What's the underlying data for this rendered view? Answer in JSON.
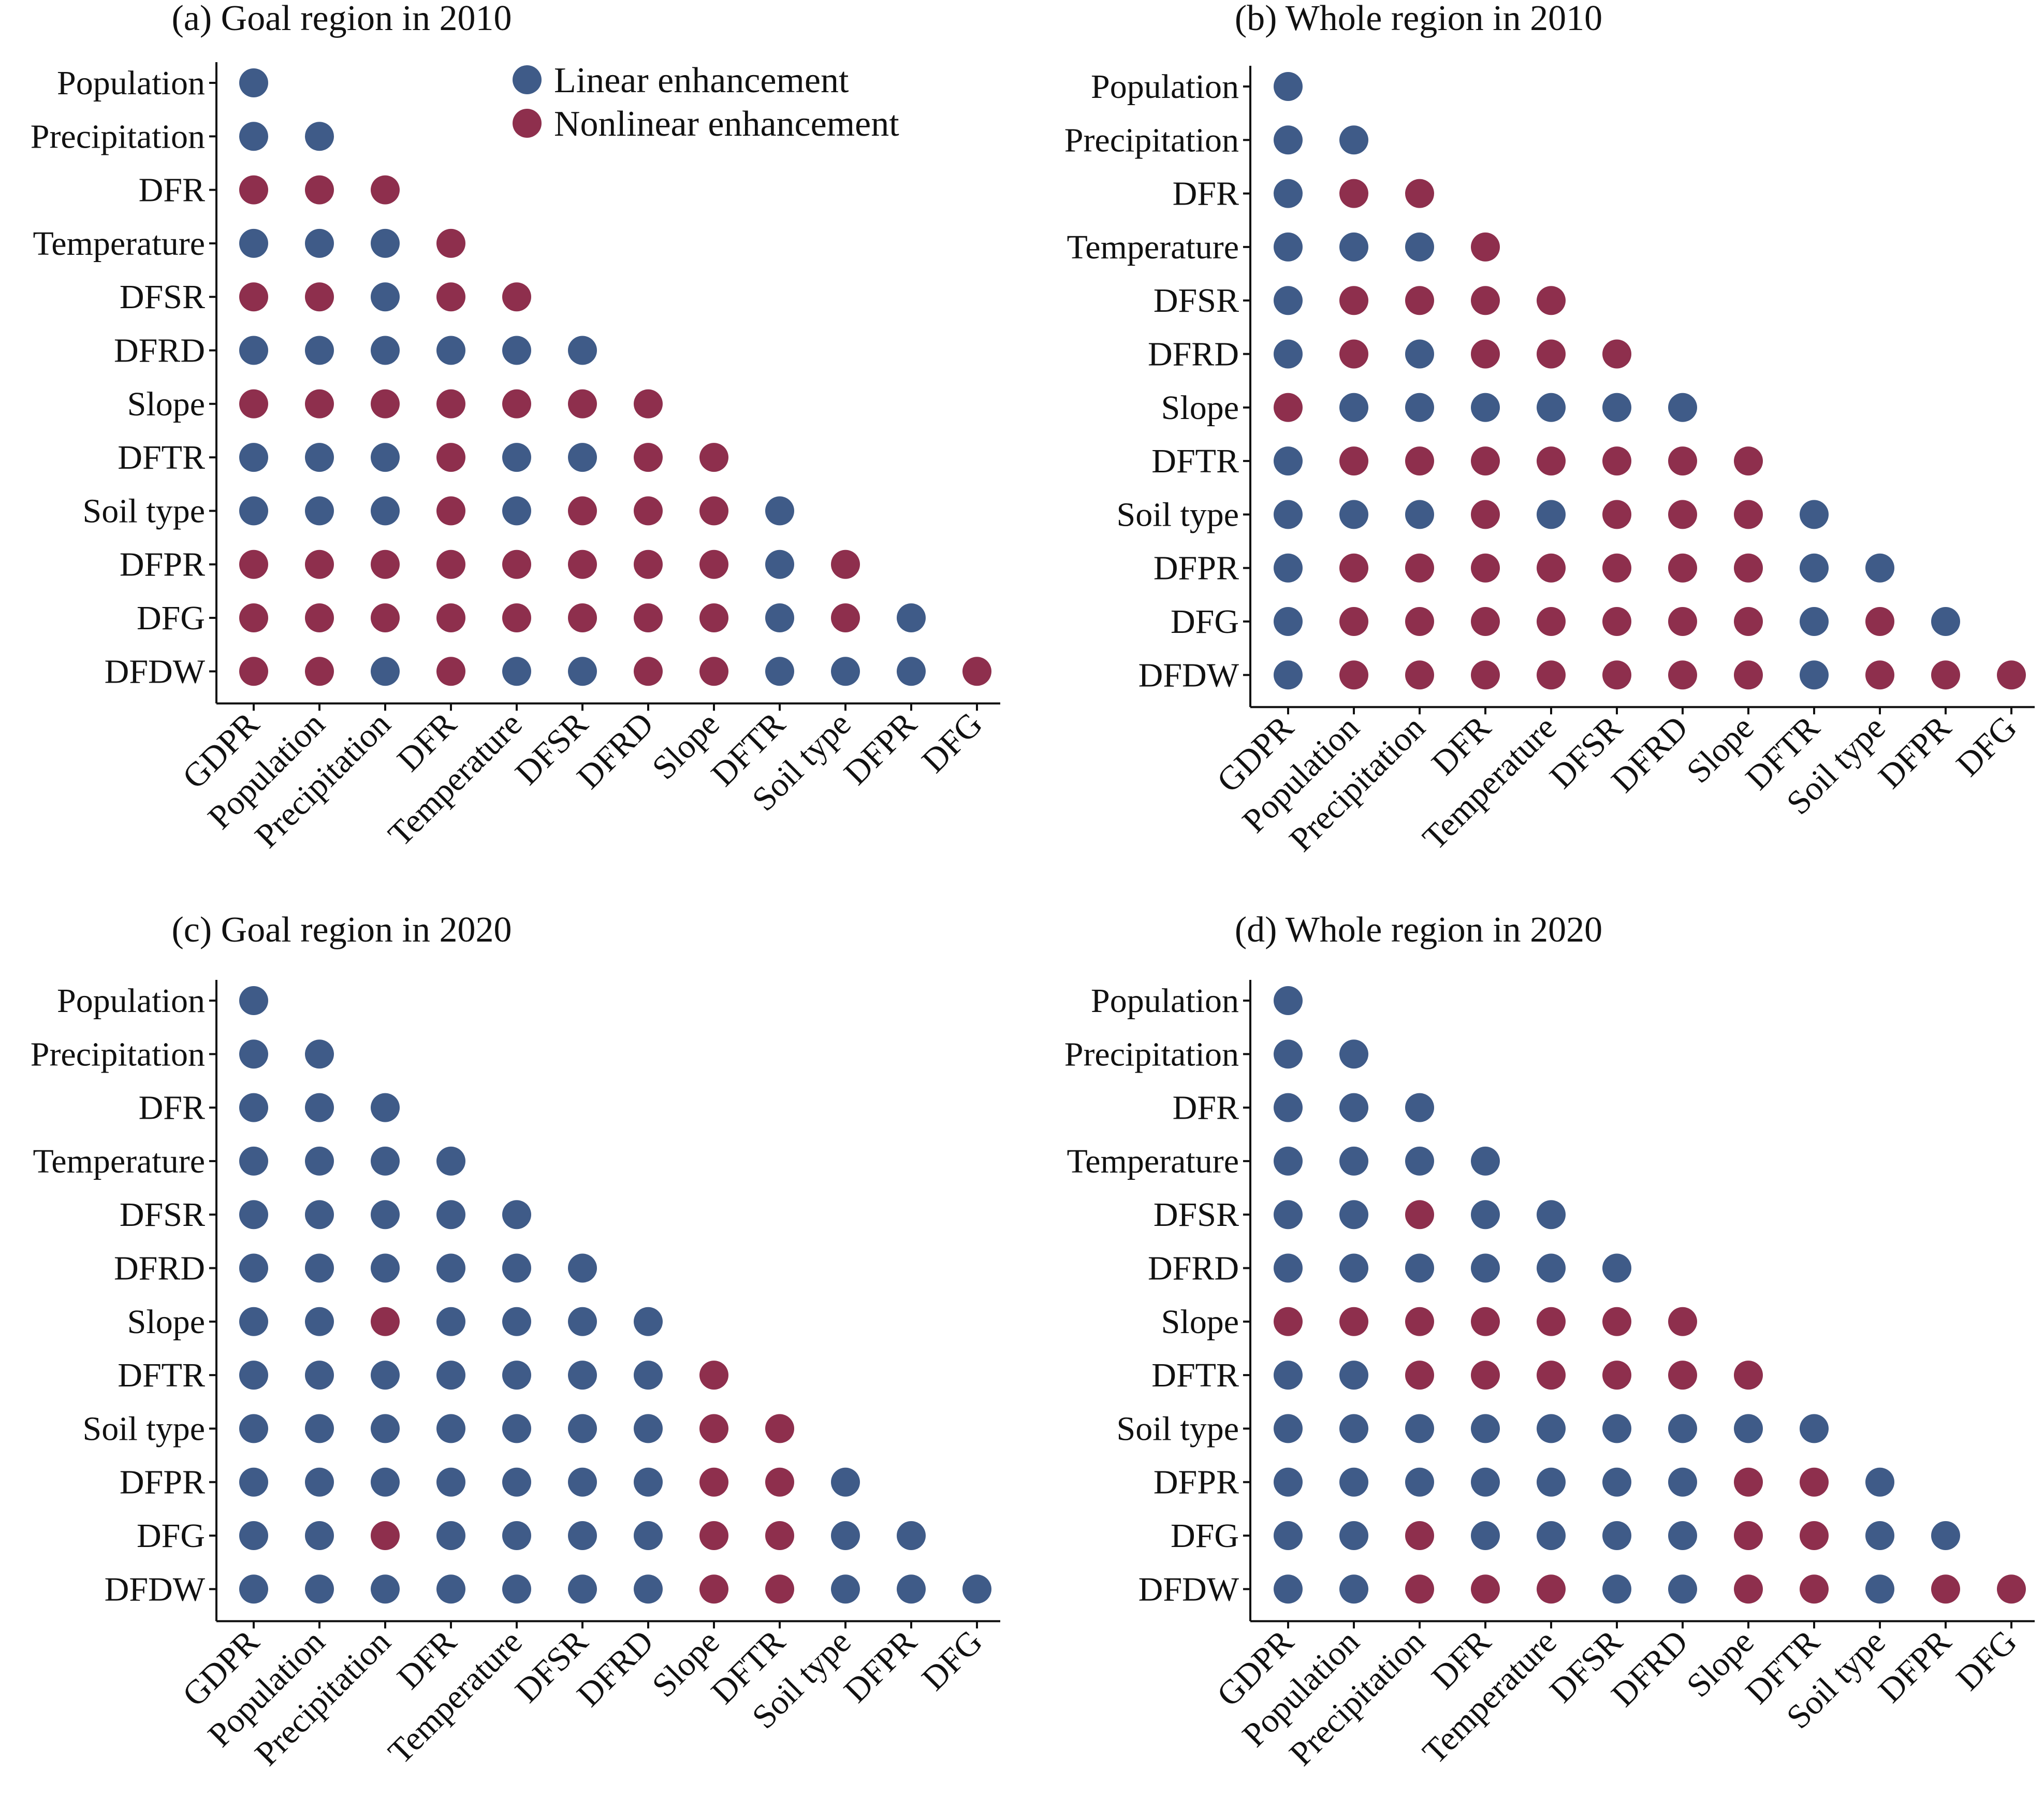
{
  "colors": {
    "linear": "#3F5B88",
    "nonlinear": "#8E2F4D",
    "axis": "#111111"
  },
  "legend": [
    {
      "key": "L",
      "label": "Linear enhancement"
    },
    {
      "key": "N",
      "label": "Nonlinear enhancement"
    }
  ],
  "chart_data": [
    {
      "type": "scatter",
      "title": "(a) Goal region in 2010",
      "y_categories": [
        "Population",
        "Precipitation",
        "DFR",
        "Temperature",
        "DFSR",
        "DFRD",
        "Slope",
        "DFTR",
        "Soil type",
        "DFPR",
        "DFG",
        "DFDW"
      ],
      "x_categories": [
        "GDPR",
        "Population",
        "Precipitation",
        "DFR",
        "Temperature",
        "DFSR",
        "DFRD",
        "Slope",
        "DFTR",
        "Soil type",
        "DFPR",
        "DFG"
      ],
      "matrix": [
        [
          "L"
        ],
        [
          "L",
          "L"
        ],
        [
          "N",
          "N",
          "N"
        ],
        [
          "L",
          "L",
          "L",
          "N"
        ],
        [
          "N",
          "N",
          "L",
          "N",
          "N"
        ],
        [
          "L",
          "L",
          "L",
          "L",
          "L",
          "L"
        ],
        [
          "N",
          "N",
          "N",
          "N",
          "N",
          "N",
          "N"
        ],
        [
          "L",
          "L",
          "L",
          "N",
          "L",
          "L",
          "N",
          "N"
        ],
        [
          "L",
          "L",
          "L",
          "N",
          "L",
          "N",
          "N",
          "N",
          "L"
        ],
        [
          "N",
          "N",
          "N",
          "N",
          "N",
          "N",
          "N",
          "N",
          "L",
          "N"
        ],
        [
          "N",
          "N",
          "N",
          "N",
          "N",
          "N",
          "N",
          "N",
          "L",
          "N",
          "L"
        ],
        [
          "N",
          "N",
          "L",
          "N",
          "L",
          "L",
          "N",
          "N",
          "L",
          "L",
          "L",
          "N"
        ]
      ]
    },
    {
      "type": "scatter",
      "title": "(b) Whole region in 2010",
      "y_categories": [
        "Population",
        "Precipitation",
        "DFR",
        "Temperature",
        "DFSR",
        "DFRD",
        "Slope",
        "DFTR",
        "Soil type",
        "DFPR",
        "DFG",
        "DFDW"
      ],
      "x_categories": [
        "GDPR",
        "Population",
        "Precipitation",
        "DFR",
        "Temperature",
        "DFSR",
        "DFRD",
        "Slope",
        "DFTR",
        "Soil type",
        "DFPR",
        "DFG"
      ],
      "matrix": [
        [
          "L"
        ],
        [
          "L",
          "L"
        ],
        [
          "L",
          "N",
          "N"
        ],
        [
          "L",
          "L",
          "L",
          "N"
        ],
        [
          "L",
          "N",
          "N",
          "N",
          "N"
        ],
        [
          "L",
          "N",
          "L",
          "N",
          "N",
          "N"
        ],
        [
          "N",
          "L",
          "L",
          "L",
          "L",
          "L",
          "L"
        ],
        [
          "L",
          "N",
          "N",
          "N",
          "N",
          "N",
          "N",
          "N"
        ],
        [
          "L",
          "L",
          "L",
          "N",
          "L",
          "N",
          "N",
          "N",
          "L"
        ],
        [
          "L",
          "N",
          "N",
          "N",
          "N",
          "N",
          "N",
          "N",
          "L",
          "L"
        ],
        [
          "L",
          "N",
          "N",
          "N",
          "N",
          "N",
          "N",
          "N",
          "L",
          "N",
          "L"
        ],
        [
          "L",
          "N",
          "N",
          "N",
          "N",
          "N",
          "N",
          "N",
          "L",
          "N",
          "N",
          "N"
        ]
      ]
    },
    {
      "type": "scatter",
      "title": "(c) Goal region in 2020",
      "y_categories": [
        "Population",
        "Precipitation",
        "DFR",
        "Temperature",
        "DFSR",
        "DFRD",
        "Slope",
        "DFTR",
        "Soil type",
        "DFPR",
        "DFG",
        "DFDW"
      ],
      "x_categories": [
        "GDPR",
        "Population",
        "Precipitation",
        "DFR",
        "Temperature",
        "DFSR",
        "DFRD",
        "Slope",
        "DFTR",
        "Soil type",
        "DFPR",
        "DFG"
      ],
      "matrix": [
        [
          "L"
        ],
        [
          "L",
          "L"
        ],
        [
          "L",
          "L",
          "L"
        ],
        [
          "L",
          "L",
          "L",
          "L"
        ],
        [
          "L",
          "L",
          "L",
          "L",
          "L"
        ],
        [
          "L",
          "L",
          "L",
          "L",
          "L",
          "L"
        ],
        [
          "L",
          "L",
          "N",
          "L",
          "L",
          "L",
          "L"
        ],
        [
          "L",
          "L",
          "L",
          "L",
          "L",
          "L",
          "L",
          "N"
        ],
        [
          "L",
          "L",
          "L",
          "L",
          "L",
          "L",
          "L",
          "N",
          "N"
        ],
        [
          "L",
          "L",
          "L",
          "L",
          "L",
          "L",
          "L",
          "N",
          "N",
          "L"
        ],
        [
          "L",
          "L",
          "N",
          "L",
          "L",
          "L",
          "L",
          "N",
          "N",
          "L",
          "L"
        ],
        [
          "L",
          "L",
          "L",
          "L",
          "L",
          "L",
          "L",
          "N",
          "N",
          "L",
          "L",
          "L"
        ]
      ]
    },
    {
      "type": "scatter",
      "title": "(d) Whole region in 2020",
      "y_categories": [
        "Population",
        "Precipitation",
        "DFR",
        "Temperature",
        "DFSR",
        "DFRD",
        "Slope",
        "DFTR",
        "Soil type",
        "DFPR",
        "DFG",
        "DFDW"
      ],
      "x_categories": [
        "GDPR",
        "Population",
        "Precipitation",
        "DFR",
        "Temperature",
        "DFSR",
        "DFRD",
        "Slope",
        "DFTR",
        "Soil type",
        "DFPR",
        "DFG"
      ],
      "matrix": [
        [
          "L"
        ],
        [
          "L",
          "L"
        ],
        [
          "L",
          "L",
          "L"
        ],
        [
          "L",
          "L",
          "L",
          "L"
        ],
        [
          "L",
          "L",
          "N",
          "L",
          "L"
        ],
        [
          "L",
          "L",
          "L",
          "L",
          "L",
          "L"
        ],
        [
          "N",
          "N",
          "N",
          "N",
          "N",
          "N",
          "N"
        ],
        [
          "L",
          "L",
          "N",
          "N",
          "N",
          "N",
          "N",
          "N"
        ],
        [
          "L",
          "L",
          "L",
          "L",
          "L",
          "L",
          "L",
          "L",
          "L"
        ],
        [
          "L",
          "L",
          "L",
          "L",
          "L",
          "L",
          "L",
          "N",
          "N",
          "L"
        ],
        [
          "L",
          "L",
          "N",
          "L",
          "L",
          "L",
          "L",
          "N",
          "N",
          "L",
          "L"
        ],
        [
          "L",
          "L",
          "N",
          "N",
          "N",
          "L",
          "L",
          "N",
          "N",
          "L",
          "N",
          "N"
        ]
      ]
    }
  ]
}
